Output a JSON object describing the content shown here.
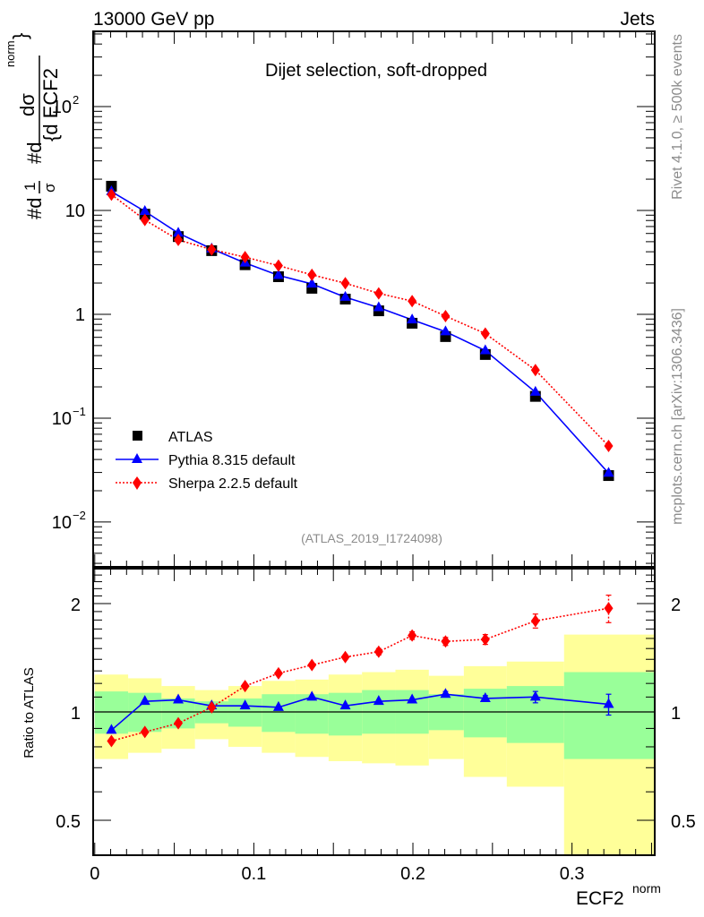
{
  "header": {
    "left": "13000 GeV pp",
    "right": "Jets"
  },
  "side_labels": {
    "rivet": "Rivet 4.1.0, ≥ 500k events",
    "mcplots": "mcplots.cern.ch [arXiv:1306.3436]"
  },
  "chart_data": [
    {
      "type": "line",
      "panel": "main",
      "title": "Dijet selection, soft-dropped",
      "analysis_tag": "(ATLAS_2019_I1724098)",
      "ylabel": "#d₁/σ #d dσ / {d ECF2^norm}",
      "ylabel_parts": {
        "frac1_num": "1",
        "frac1_den": "σ",
        "pre1": "#d",
        "pre2": "#d",
        "frac2_num": "dσ",
        "frac2_den": "{d ECF2",
        "sup": "norm",
        "brace": "}"
      },
      "yscale": "log",
      "ylim": [
        0.0037,
        530
      ],
      "xlim": [
        -0.001,
        0.352
      ],
      "yticks": [
        {
          "value": 0.01,
          "label": "10",
          "sup": "−2"
        },
        {
          "value": 0.1,
          "label": "10",
          "sup": "−1"
        },
        {
          "value": 1,
          "label": "1",
          "sup": ""
        },
        {
          "value": 10,
          "label": "10",
          "sup": ""
        },
        {
          "value": 100,
          "label": "10",
          "sup": "2"
        }
      ],
      "legend_position": "bottom-left",
      "legend": [
        {
          "label": "ATLAS",
          "marker": "square",
          "color": "#000000",
          "line": "none"
        },
        {
          "label": "Pythia 8.315 default",
          "marker": "triangle",
          "color": "#0000ff",
          "line": "solid"
        },
        {
          "label": "Sherpa 2.2.5 default",
          "marker": "diamond",
          "color": "#ff0000",
          "line": "dotted"
        }
      ],
      "x": [
        0.0105,
        0.0315,
        0.0525,
        0.0735,
        0.0945,
        0.1155,
        0.1365,
        0.1575,
        0.1785,
        0.1995,
        0.2205,
        0.2455,
        0.277,
        0.323
      ],
      "bin_edges": [
        0.0,
        0.021,
        0.042,
        0.063,
        0.084,
        0.105,
        0.126,
        0.147,
        0.168,
        0.189,
        0.21,
        0.232,
        0.259,
        0.295,
        0.352
      ],
      "series": [
        {
          "name": "ATLAS",
          "values": [
            17.1,
            9.2,
            5.6,
            4.1,
            3.0,
            2.3,
            1.78,
            1.4,
            1.08,
            0.82,
            0.61,
            0.41,
            0.162,
            0.028
          ]
        },
        {
          "name": "Pythia 8.315 default",
          "values": [
            15.2,
            9.8,
            6.05,
            4.27,
            3.12,
            2.37,
            1.96,
            1.46,
            1.16,
            0.885,
            0.68,
            0.447,
            0.178,
            0.0295
          ]
        },
        {
          "name": "Sherpa 2.2.5 default",
          "values": [
            14.2,
            8.1,
            5.2,
            4.2,
            3.55,
            2.94,
            2.4,
            1.99,
            1.59,
            1.34,
            0.96,
            0.652,
            0.29,
            0.054
          ]
        }
      ]
    },
    {
      "type": "line",
      "panel": "ratio",
      "ylabel": "Ratio to ATLAS",
      "xlabel": "ECF2",
      "xlabel_sup": "norm",
      "yscale": "log",
      "ylim": [
        0.4,
        2.5
      ],
      "xlim": [
        -0.001,
        0.352
      ],
      "xticks": [
        {
          "value": 0,
          "label": "0"
        },
        {
          "value": 0.1,
          "label": "0.1"
        },
        {
          "value": 0.2,
          "label": "0.2"
        },
        {
          "value": 0.3,
          "label": "0.3"
        }
      ],
      "yticks": [
        {
          "value": 0.5,
          "label": "0.5"
        },
        {
          "value": 1,
          "label": "1"
        },
        {
          "value": 2,
          "label": "2"
        }
      ],
      "reference_line": 1,
      "x": [
        0.0105,
        0.0315,
        0.0525,
        0.0735,
        0.0945,
        0.1155,
        0.1365,
        0.1575,
        0.1785,
        0.1995,
        0.2205,
        0.2455,
        0.277,
        0.323
      ],
      "bin_edges": [
        0.0,
        0.021,
        0.042,
        0.063,
        0.084,
        0.105,
        0.126,
        0.147,
        0.168,
        0.189,
        0.21,
        0.232,
        0.259,
        0.295,
        0.352
      ],
      "bands": {
        "stat_color": "#99ff99",
        "total_color": "#ffff99",
        "green_lo": [
          0.87,
          0.88,
          0.9,
          0.93,
          0.91,
          0.88,
          0.87,
          0.86,
          0.87,
          0.87,
          0.89,
          0.85,
          0.82,
          0.74
        ],
        "green_hi": [
          1.14,
          1.13,
          1.09,
          1.07,
          1.09,
          1.12,
          1.12,
          1.13,
          1.15,
          1.15,
          1.12,
          1.16,
          1.18,
          1.29
        ],
        "yellow_lo": [
          0.74,
          0.77,
          0.79,
          0.84,
          0.8,
          0.77,
          0.75,
          0.73,
          0.72,
          0.71,
          0.74,
          0.66,
          0.62,
          0.3
        ],
        "yellow_hi": [
          1.27,
          1.24,
          1.18,
          1.15,
          1.18,
          1.22,
          1.23,
          1.27,
          1.29,
          1.31,
          1.26,
          1.34,
          1.38,
          1.64
        ],
        "yellow_hi_last": [
          1.64,
          1.63
        ],
        "green_hi_last": [
          1.28,
          1.28
        ],
        "green_lo_last": [
          0.74,
          0.75
        ]
      },
      "series": [
        {
          "name": "Pythia 8.315 default",
          "color": "#0000ff",
          "values": [
            0.89,
            1.07,
            1.08,
            1.04,
            1.04,
            1.03,
            1.1,
            1.04,
            1.07,
            1.08,
            1.12,
            1.09,
            1.1,
            1.05
          ],
          "errors": [
            0.01,
            0.01,
            0.01,
            0.01,
            0.01,
            0.01,
            0.01,
            0.01,
            0.01,
            0.015,
            0.02,
            0.02,
            0.04,
            0.07
          ]
        },
        {
          "name": "Sherpa 2.2.5 default",
          "color": "#ff0000",
          "values": [
            0.83,
            0.88,
            0.93,
            1.03,
            1.18,
            1.28,
            1.35,
            1.42,
            1.47,
            1.63,
            1.57,
            1.59,
            1.79,
            1.94
          ],
          "errors": [
            0.01,
            0.01,
            0.01,
            0.01,
            0.01,
            0.01,
            0.015,
            0.02,
            0.03,
            0.04,
            0.04,
            0.05,
            0.08,
            0.17
          ]
        }
      ]
    }
  ]
}
